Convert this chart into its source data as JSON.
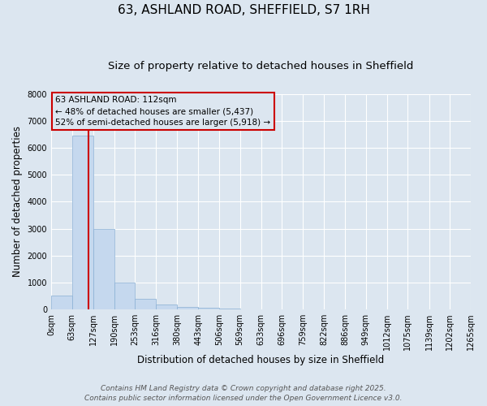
{
  "title": "63, ASHLAND ROAD, SHEFFIELD, S7 1RH",
  "subtitle": "Size of property relative to detached houses in Sheffield",
  "xlabel": "Distribution of detached houses by size in Sheffield",
  "ylabel": "Number of detached properties",
  "bin_edges": [
    0,
    63,
    127,
    190,
    253,
    316,
    380,
    443,
    506,
    569,
    633,
    696,
    759,
    822,
    886,
    949,
    1012,
    1075,
    1139,
    1202,
    1265
  ],
  "bin_labels": [
    "0sqm",
    "63sqm",
    "127sqm",
    "190sqm",
    "253sqm",
    "316sqm",
    "380sqm",
    "443sqm",
    "506sqm",
    "569sqm",
    "633sqm",
    "696sqm",
    "759sqm",
    "822sqm",
    "886sqm",
    "949sqm",
    "1012sqm",
    "1075sqm",
    "1139sqm",
    "1202sqm",
    "1265sqm"
  ],
  "bar_heights": [
    500,
    6450,
    3000,
    1000,
    400,
    175,
    100,
    50,
    20,
    0,
    0,
    0,
    0,
    0,
    0,
    0,
    0,
    0,
    0,
    0
  ],
  "bar_color": "#c5d8ee",
  "bar_edgecolor": "#8ab0d4",
  "bar_linewidth": 0.5,
  "vline_x": 112,
  "vline_color": "#cc0000",
  "vline_linewidth": 1.5,
  "ylim": [
    0,
    8000
  ],
  "yticks": [
    0,
    1000,
    2000,
    3000,
    4000,
    5000,
    6000,
    7000,
    8000
  ],
  "annotation_title": "63 ASHLAND ROAD: 112sqm",
  "annotation_line2": "← 48% of detached houses are smaller (5,437)",
  "annotation_line3": "52% of semi-detached houses are larger (5,918) →",
  "annotation_box_color": "#cc0000",
  "background_color": "#dce6f0",
  "grid_color": "#ffffff",
  "title_fontsize": 11,
  "subtitle_fontsize": 9.5,
  "axis_label_fontsize": 8.5,
  "tick_fontsize": 7,
  "footer_line1": "Contains HM Land Registry data © Crown copyright and database right 2025.",
  "footer_line2": "Contains public sector information licensed under the Open Government Licence v3.0.",
  "footer_fontsize": 6.5
}
